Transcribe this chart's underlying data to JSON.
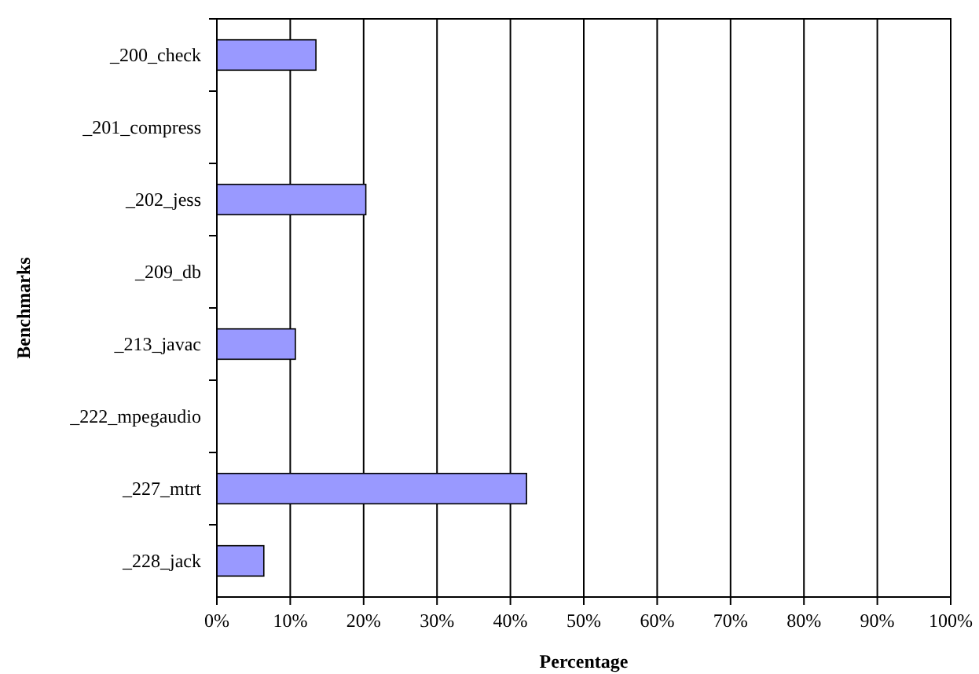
{
  "chart_data": {
    "type": "bar",
    "orientation": "horizontal",
    "xlabel": "Percentage",
    "ylabel": "Benchmarks",
    "categories": [
      "_200_check",
      "_201_compress",
      "_202_jess",
      "_209_db",
      "_213_javac",
      "_222_mpegaudio",
      "_227_mtrt",
      "_228_jack"
    ],
    "values": [
      13.5,
      0,
      20.3,
      0,
      10.7,
      0,
      42.2,
      6.4
    ],
    "color": "#9999ff",
    "xlim": [
      0,
      100
    ],
    "xticks": [
      {
        "value": 0,
        "label": "0%"
      },
      {
        "value": 10,
        "label": "10%"
      },
      {
        "value": 20,
        "label": "20%"
      },
      {
        "value": 30,
        "label": "30%"
      },
      {
        "value": 40,
        "label": "40%"
      },
      {
        "value": 50,
        "label": "50%"
      },
      {
        "value": 60,
        "label": "60%"
      },
      {
        "value": 70,
        "label": "70%"
      },
      {
        "value": 80,
        "label": "80%"
      },
      {
        "value": 90,
        "label": "90%"
      },
      {
        "value": 100,
        "label": "100%"
      }
    ],
    "grid": "x"
  }
}
